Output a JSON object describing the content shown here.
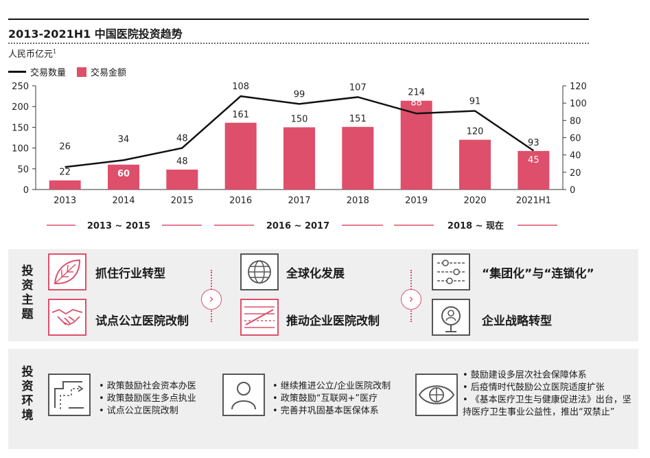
{
  "header": {
    "title": "2013-2021H1 中国医院投资趋势",
    "unit": "人民币亿元",
    "unit_footnote": "1"
  },
  "legend": {
    "line_label": "交易数量",
    "bar_label": "交易金额"
  },
  "chart_data": {
    "type": "bar+line",
    "title": "2013-2021H1 中国医院投资趋势",
    "categories": [
      "2013",
      "2014",
      "2015",
      "2016",
      "2017",
      "2018",
      "2019",
      "2020",
      "2021H1"
    ],
    "series": [
      {
        "name": "交易金额",
        "kind": "bar",
        "axis": "left",
        "color": "#dd4f6a",
        "values": [
          22,
          60,
          48,
          161,
          150,
          151,
          214,
          120,
          93
        ]
      },
      {
        "name": "交易数量",
        "kind": "line",
        "axis": "right",
        "color": "#111111",
        "values": [
          26,
          34,
          48,
          108,
          99,
          107,
          88,
          91,
          45
        ]
      }
    ],
    "left_axis": {
      "min": 0,
      "max": 250,
      "ticks": [
        0,
        50,
        100,
        150,
        200,
        250
      ]
    },
    "right_axis": {
      "min": 0,
      "max": 120,
      "ticks": [
        0,
        20,
        40,
        60,
        80,
        100,
        120
      ]
    },
    "bar_labels": [
      "22",
      "60",
      "48",
      "161",
      "150",
      "151",
      "214",
      "120",
      "93"
    ],
    "line_labels": [
      "26",
      "34",
      "48",
      "108",
      "99",
      "107",
      "88",
      "91",
      "45"
    ],
    "line_label_inside_bar": [
      false,
      false,
      false,
      false,
      false,
      false,
      true,
      false,
      true
    ],
    "bar_label_white": [
      false,
      true,
      false,
      false,
      false,
      false,
      false,
      false,
      false
    ],
    "legend_position": "top-left"
  },
  "periods": [
    "2013 ~ 2015",
    "2016 ~ 2017",
    "2018 ~ 现在"
  ],
  "themes": {
    "row_title": "投资主题",
    "items": [
      {
        "label": "抓住行业转型",
        "icon": "leaf-icon"
      },
      {
        "label": "试点公立医院改制",
        "icon": "handshake-icon"
      },
      {
        "label": "全球化发展",
        "icon": "globe-icon"
      },
      {
        "label": "推动企业医院改制",
        "icon": "chart-lines-icon"
      },
      {
        "label": "“集团化”与“连锁化”",
        "icon": "sliders-icon"
      },
      {
        "label": "企业战略转型",
        "icon": "magnifier-person-icon"
      }
    ],
    "arrow": "›"
  },
  "environment": {
    "row_title": "投资环境",
    "groups": [
      {
        "icon": "flow-route-icon",
        "bullets": [
          "• 政策鼓励社会资本办医",
          "• 政策鼓励医生多点执业",
          "• 试点公立医院改制"
        ]
      },
      {
        "icon": "person-icon",
        "bullets": [
          "• 继续推进公立/企业医院改制",
          "• 政策鼓励“互联网+”医疗",
          "• 完善并巩固基本医保体系"
        ]
      },
      {
        "icon": "eye-globe-icon",
        "bullets": [
          "• 鼓励建设多层次社会保障体系",
          "• 后疫情时代鼓励公立医院适度扩张",
          "• 《基本医疗卫生与健康促进法》出台，坚持医疗卫生事业公益性，推出“双禁止”"
        ]
      }
    ]
  },
  "colors": {
    "accent": "#dd4f6a",
    "line": "#111111",
    "panel": "#efefef"
  }
}
